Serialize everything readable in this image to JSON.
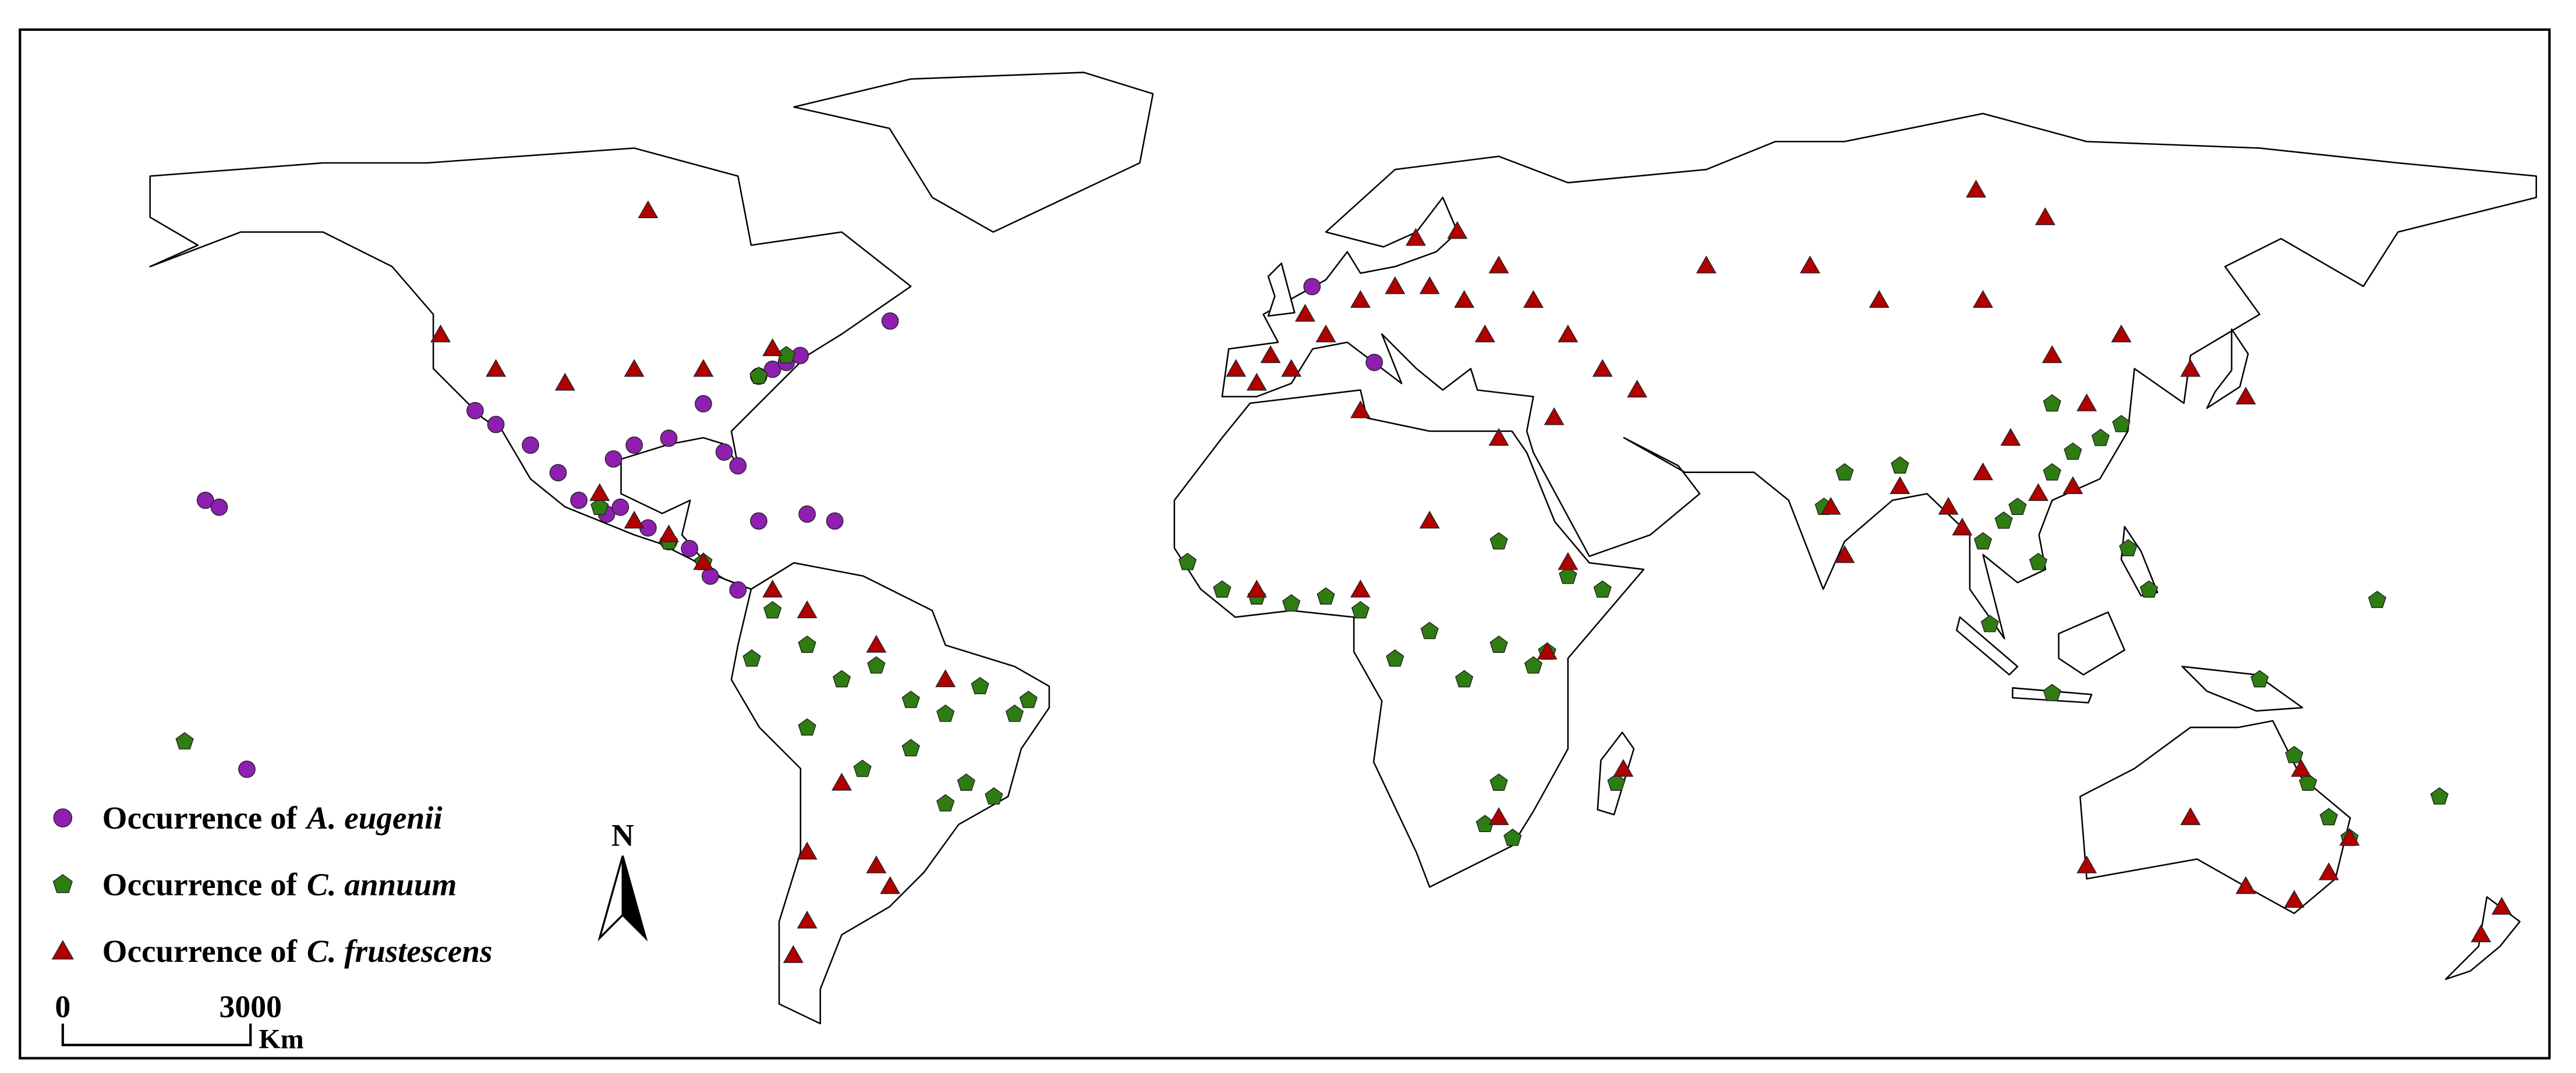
{
  "legend": {
    "items": [
      {
        "prefix": "Occurrence of",
        "species": "A. eugenii",
        "color": "#8e1fb0",
        "marker": "circle",
        "points": [
          [
            -118,
            34
          ],
          [
            -115,
            32
          ],
          [
            -110,
            29
          ],
          [
            -106,
            25
          ],
          [
            -103,
            21
          ],
          [
            -99,
            19
          ],
          [
            -97,
            20
          ],
          [
            -93,
            17
          ],
          [
            -90,
            15
          ],
          [
            -87,
            14
          ],
          [
            -84,
            10
          ],
          [
            -80,
            8
          ],
          [
            -98,
            27
          ],
          [
            -95,
            29
          ],
          [
            -90,
            30
          ],
          [
            -82,
            28
          ],
          [
            -80,
            26
          ],
          [
            -77,
            39
          ],
          [
            -75,
            40
          ],
          [
            -73,
            41
          ],
          [
            -71,
            42
          ],
          [
            -85,
            35
          ],
          [
            -66,
            18
          ],
          [
            -70,
            19
          ],
          [
            -77,
            18
          ],
          [
            -157,
            21
          ],
          [
            -155,
            20
          ],
          [
            -151,
            -18
          ],
          [
            -58,
            47
          ],
          [
            3,
            52
          ],
          [
            12,
            41
          ]
        ]
      },
      {
        "prefix": "Occurrence of",
        "species": "C. annuum",
        "color": "#2f7d12",
        "marker": "pentagon",
        "points": [
          [
            -75,
            5
          ],
          [
            -70,
            0
          ],
          [
            -65,
            -5
          ],
          [
            -60,
            -3
          ],
          [
            -55,
            -8
          ],
          [
            -50,
            -10
          ],
          [
            -45,
            -6
          ],
          [
            -40,
            -10
          ],
          [
            -38,
            -8
          ],
          [
            -47,
            -20
          ],
          [
            -50,
            -23
          ],
          [
            -43,
            -22
          ],
          [
            -55,
            -15
          ],
          [
            -62,
            -18
          ],
          [
            -70,
            -12
          ],
          [
            -78,
            -2
          ],
          [
            -90,
            15
          ],
          [
            -85,
            12
          ],
          [
            -100,
            20
          ],
          [
            -77,
            39
          ],
          [
            -73,
            42
          ],
          [
            -15,
            12
          ],
          [
            -10,
            8
          ],
          [
            -5,
            7
          ],
          [
            0,
            6
          ],
          [
            5,
            7
          ],
          [
            10,
            5
          ],
          [
            15,
            -2
          ],
          [
            20,
            2
          ],
          [
            25,
            -5
          ],
          [
            30,
            0
          ],
          [
            35,
            -3
          ],
          [
            37,
            -1
          ],
          [
            30,
            -20
          ],
          [
            28,
            -26
          ],
          [
            32,
            -28
          ],
          [
            47,
            -20
          ],
          [
            40,
            10
          ],
          [
            45,
            8
          ],
          [
            30,
            15
          ],
          [
            77,
            20
          ],
          [
            80,
            25
          ],
          [
            88,
            26
          ],
          [
            100,
            15
          ],
          [
            103,
            18
          ],
          [
            105,
            20
          ],
          [
            108,
            12
          ],
          [
            110,
            25
          ],
          [
            113,
            28
          ],
          [
            117,
            30
          ],
          [
            120,
            32
          ],
          [
            110,
            35
          ],
          [
            101,
            3
          ],
          [
            110,
            -7
          ],
          [
            121,
            14
          ],
          [
            124,
            8
          ],
          [
            140,
            -5
          ],
          [
            145,
            -16
          ],
          [
            147,
            -20
          ],
          [
            150,
            -25
          ],
          [
            153,
            -28
          ],
          [
            166,
            -22
          ],
          [
            157,
            6.5
          ],
          [
            -160,
            -14
          ]
        ]
      },
      {
        "prefix": "Occurrence of",
        "species": "C. frustescens",
        "color": "#b00000",
        "marker": "triangle",
        "points": [
          [
            -8,
            40
          ],
          [
            -5,
            38
          ],
          [
            -3,
            42
          ],
          [
            0,
            40
          ],
          [
            2,
            48
          ],
          [
            5,
            45
          ],
          [
            10,
            50
          ],
          [
            15,
            52
          ],
          [
            20,
            52
          ],
          [
            25,
            50
          ],
          [
            30,
            55
          ],
          [
            35,
            50
          ],
          [
            24,
            60
          ],
          [
            18,
            59
          ],
          [
            28,
            45
          ],
          [
            40,
            45
          ],
          [
            45,
            40
          ],
          [
            50,
            37
          ],
          [
            38,
            33
          ],
          [
            30,
            30
          ],
          [
            60,
            55
          ],
          [
            75,
            55
          ],
          [
            85,
            50
          ],
          [
            100,
            50
          ],
          [
            110,
            42
          ],
          [
            120,
            45
          ],
          [
            130,
            40
          ],
          [
            138,
            36
          ],
          [
            78,
            20
          ],
          [
            80,
            13
          ],
          [
            88,
            23
          ],
          [
            95,
            20
          ],
          [
            100,
            25
          ],
          [
            104,
            30
          ],
          [
            108,
            22
          ],
          [
            113,
            23
          ],
          [
            115,
            35
          ],
          [
            97,
            17
          ],
          [
            -123,
            45
          ],
          [
            -115,
            40
          ],
          [
            -105,
            38
          ],
          [
            -95,
            40
          ],
          [
            -85,
            40
          ],
          [
            -75,
            43
          ],
          [
            -100,
            22
          ],
          [
            -95,
            18
          ],
          [
            -90,
            16
          ],
          [
            -85,
            12
          ],
          [
            -75,
            8
          ],
          [
            -70,
            5
          ],
          [
            -60,
            0
          ],
          [
            -50,
            -5
          ],
          [
            -65,
            -20
          ],
          [
            -70,
            -30
          ],
          [
            -60,
            -32
          ],
          [
            -58,
            -35
          ],
          [
            -70,
            -40
          ],
          [
            -72,
            -45
          ],
          [
            -93,
            63
          ],
          [
            10,
            34
          ],
          [
            20,
            18
          ],
          [
            37,
            -1
          ],
          [
            40,
            12
          ],
          [
            30,
            -25
          ],
          [
            -5,
            8
          ],
          [
            10,
            8
          ],
          [
            48,
            -18
          ],
          [
            115,
            -32
          ],
          [
            130,
            -25
          ],
          [
            138,
            -35
          ],
          [
            145,
            -37
          ],
          [
            150,
            -33
          ],
          [
            153,
            -28
          ],
          [
            146,
            -18
          ],
          [
            175,
            -38
          ],
          [
            172,
            -42
          ],
          [
            99,
            66
          ],
          [
            109,
            62
          ]
        ]
      }
    ]
  },
  "north_arrow": "N",
  "scale_bar": {
    "labels": [
      "0",
      "3000"
    ],
    "unit": "Km"
  }
}
